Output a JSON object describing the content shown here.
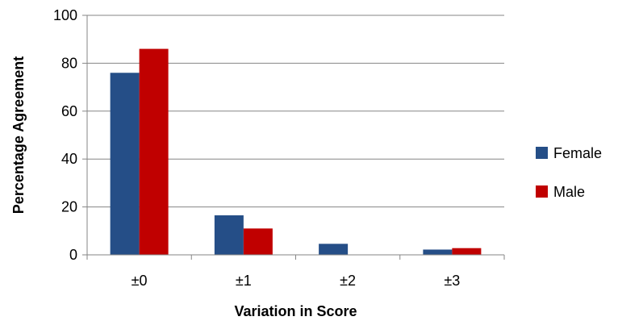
{
  "chart_data": {
    "type": "bar",
    "categories": [
      "±0",
      "±1",
      "±2",
      "±3"
    ],
    "series": [
      {
        "name": "Female",
        "values": [
          76,
          16.5,
          4.6,
          2.2
        ],
        "color": "#254E87"
      },
      {
        "name": "Male",
        "values": [
          86,
          11,
          0,
          2.8
        ],
        "color": "#C00000"
      }
    ],
    "title": "",
    "xlabel": "Variation in Score",
    "ylabel": "Percentage Agreement",
    "ylim": [
      0,
      100
    ],
    "yticks": [
      0,
      20,
      40,
      60,
      80,
      100
    ],
    "grid": true,
    "legend_position": "right"
  }
}
